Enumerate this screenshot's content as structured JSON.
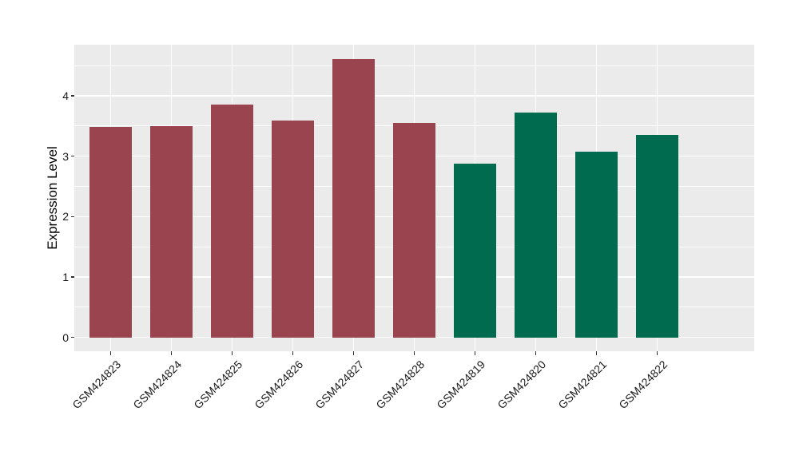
{
  "chart_data": {
    "type": "bar",
    "title": "",
    "xlabel": "",
    "ylabel": "Expression Level",
    "categories": [
      "GSM424823",
      "GSM424824",
      "GSM424825",
      "GSM424826",
      "GSM424827",
      "GSM424828",
      "GSM424819",
      "GSM424820",
      "GSM424821",
      "GSM424822"
    ],
    "values": [
      3.48,
      3.5,
      3.85,
      3.59,
      4.61,
      3.55,
      2.88,
      3.72,
      3.07,
      3.35
    ],
    "bar_groups": [
      "group1",
      "group1",
      "group1",
      "group1",
      "group1",
      "group1",
      "group2",
      "group2",
      "group2",
      "group2"
    ],
    "group_colors": {
      "group1": "#9A4450",
      "group2": "#006B4E"
    },
    "y_ticks": [
      0,
      1,
      2,
      3,
      4
    ],
    "y_minor_ticks": [
      0.5,
      1.5,
      2.5,
      3.5,
      4.5
    ],
    "ylim": [
      -0.231,
      4.846
    ],
    "grid": "on",
    "legend": "none",
    "panel_background": "#EBEBEB",
    "grid_color": "#FFFFFF",
    "tick_color": "#333333",
    "text_color": "#1a1a1a"
  }
}
